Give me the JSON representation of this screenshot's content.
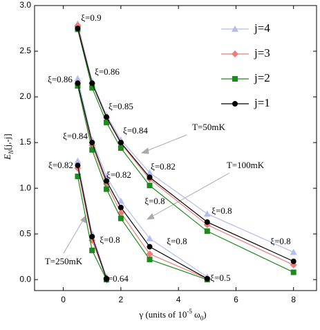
{
  "chart_data": {
    "type": "line",
    "xlabel": [
      "γ (units of 10",
      "-5",
      " ω",
      "0",
      ")"
    ],
    "ylabel": [
      "E",
      "N",
      "[j,-j]"
    ],
    "xlim": [
      -1,
      8.8
    ],
    "ylim": [
      -0.12,
      3.0
    ],
    "xticks": [
      0,
      2,
      4,
      6,
      8
    ],
    "yticks": [
      {
        "value": 0,
        "label": "0.0"
      },
      0.5,
      {
        "value": 1,
        "label": "1.0"
      },
      1.5,
      {
        "value": 2,
        "label": "2.0"
      },
      2.5,
      {
        "value": 3,
        "label": "3.0"
      }
    ],
    "x": [
      0.5,
      1,
      1.5,
      2,
      3,
      5,
      8
    ],
    "legend": [
      {
        "name": "j=4",
        "color": "#b4bcf0",
        "marker": "triangle"
      },
      {
        "name": "j=3",
        "color": "#f07a78",
        "marker": "diamond"
      },
      {
        "name": "j=2",
        "color": "#1c8a1c",
        "marker": "square"
      },
      {
        "name": "j=1",
        "color": "#000000",
        "marker": "circle"
      }
    ],
    "groups": [
      {
        "label": "T=50mK",
        "series": [
          {
            "values": [
              2.8,
              2.17,
              1.8,
              1.53,
              1.17,
              0.72,
              0.3
            ]
          },
          {
            "values": [
              2.78,
              2.15,
              1.77,
              1.49,
              1.1,
              0.6,
              0.16
            ]
          },
          {
            "values": [
              2.74,
              2.1,
              1.72,
              1.44,
              1.03,
              0.53,
              0.08
            ]
          },
          {
            "values": [
              2.75,
              2.15,
              1.78,
              1.5,
              1.12,
              0.63,
              0.2
            ]
          }
        ]
      },
      {
        "label": "T=100mK",
        "series": [
          {
            "values": [
              2.2,
              1.53,
              1.13,
              0.86,
              0.45,
              0.03
            ]
          },
          {
            "values": [
              2.15,
              1.47,
              1.05,
              0.73,
              0.28,
              0.01
            ]
          },
          {
            "values": [
              2.12,
              1.42,
              0.99,
              0.67,
              0.22,
              0.0
            ]
          },
          {
            "values": [
              2.15,
              1.5,
              1.08,
              0.79,
              0.36,
              0.01
            ]
          }
        ]
      },
      {
        "label": "T=250mK",
        "series": [
          {
            "values": [
              1.3,
              0.5,
              0.03
            ]
          },
          {
            "values": [
              1.22,
              0.43,
              0.01
            ]
          },
          {
            "values": [
              1.13,
              0.32,
              0.0
            ]
          },
          {
            "values": [
              1.25,
              0.47,
              0.01
            ]
          }
        ]
      }
    ],
    "annotations": [
      "ξ=0.9",
      "ξ=0.86",
      "ξ=0.86",
      "ξ=0.85",
      "ξ=0.84",
      "ξ=0.84",
      "ξ=0.82",
      "ξ=0.82",
      "ξ=0.82",
      "ξ=0.8",
      "ξ=0.8",
      "ξ=0.8",
      "ξ=0.64",
      "ξ=0.5",
      "ξ=0.8",
      "ξ=0.8"
    ]
  }
}
